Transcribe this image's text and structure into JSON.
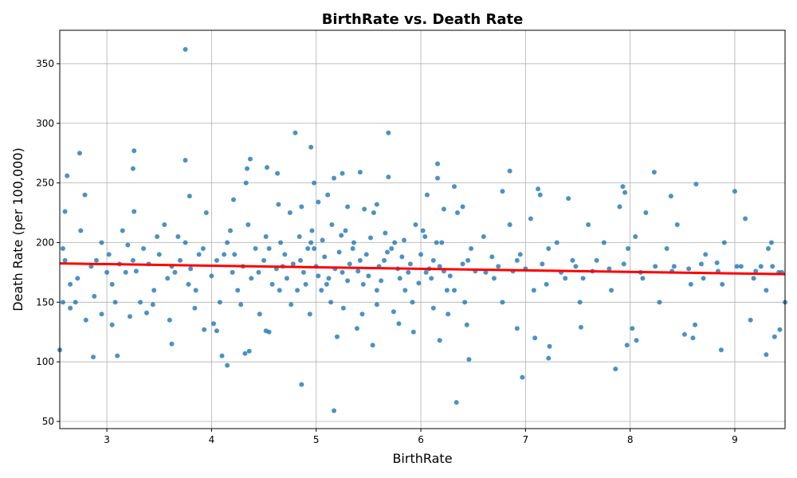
{
  "chart_data": {
    "type": "scatter",
    "title": "BirthRate vs. Death Rate",
    "xlabel": "BirthRate",
    "ylabel": "Death Rate (per 100,000)",
    "xlim": [
      2.55,
      9.48
    ],
    "ylim": [
      44,
      378
    ],
    "xticks": [
      3,
      4,
      5,
      6,
      7,
      8,
      9
    ],
    "yticks": [
      50,
      100,
      150,
      200,
      250,
      300,
      350
    ],
    "grid": true,
    "point_color": "#1f77b4",
    "trend_color": "#ff0000",
    "trendline": {
      "x": [
        2.55,
        9.48
      ],
      "y": [
        182.5,
        173.5
      ]
    },
    "series": [
      {
        "points": [
          [
            3.75,
            362
          ],
          [
            4.8,
            292
          ],
          [
            5.69,
            292
          ],
          [
            4.95,
            280
          ],
          [
            2.74,
            275
          ],
          [
            3.26,
            277
          ],
          [
            4.37,
            270
          ],
          [
            3.75,
            269
          ],
          [
            3.25,
            262
          ],
          [
            4.34,
            262
          ],
          [
            4.53,
            263
          ],
          [
            4.63,
            258
          ],
          [
            5.69,
            255
          ],
          [
            5.17,
            254
          ],
          [
            5.25,
            258
          ],
          [
            5.42,
            259
          ],
          [
            6.16,
            266
          ],
          [
            6.85,
            260
          ],
          [
            8.23,
            259
          ],
          [
            8.63,
            249
          ],
          [
            2.62,
            256
          ],
          [
            2.53,
            228
          ],
          [
            2.6,
            226
          ],
          [
            2.79,
            240
          ],
          [
            4.33,
            250
          ],
          [
            3.26,
            226
          ],
          [
            4.98,
            250
          ],
          [
            6.16,
            254
          ],
          [
            6.32,
            247
          ],
          [
            7.12,
            245
          ],
          [
            7.93,
            247
          ],
          [
            7.95,
            242
          ],
          [
            9.0,
            243
          ],
          [
            3.79,
            239
          ],
          [
            4.21,
            236
          ],
          [
            5.11,
            240
          ],
          [
            6.06,
            240
          ],
          [
            6.78,
            243
          ],
          [
            7.14,
            240
          ],
          [
            7.41,
            237
          ],
          [
            8.39,
            239
          ],
          [
            2.87,
            104
          ],
          [
            3.1,
            105
          ],
          [
            2.55,
            110
          ],
          [
            4.15,
            97
          ],
          [
            4.1,
            105
          ],
          [
            4.36,
            109
          ],
          [
            4.32,
            107
          ],
          [
            4.86,
            81
          ],
          [
            5.17,
            59
          ],
          [
            6.34,
            66
          ],
          [
            6.97,
            87
          ],
          [
            7.86,
            94
          ],
          [
            6.46,
            102
          ],
          [
            7.22,
            103
          ],
          [
            8.87,
            110
          ],
          [
            9.3,
            106
          ],
          [
            5.54,
            114
          ],
          [
            3.62,
            115
          ],
          [
            4.55,
            125
          ],
          [
            5.2,
            121
          ],
          [
            5.93,
            125
          ],
          [
            6.18,
            118
          ],
          [
            7.09,
            120
          ],
          [
            7.97,
            114
          ],
          [
            8.06,
            118
          ],
          [
            8.6,
            120
          ],
          [
            9.38,
            121
          ],
          [
            9.43,
            127
          ],
          [
            8.52,
            123
          ],
          [
            7.23,
            113
          ],
          [
            3.05,
            131
          ],
          [
            2.95,
            140
          ],
          [
            2.58,
            150
          ],
          [
            2.7,
            150
          ],
          [
            3.38,
            141
          ],
          [
            3.93,
            127
          ],
          [
            4.05,
            126
          ],
          [
            4.52,
            126
          ],
          [
            5.39,
            128
          ],
          [
            5.79,
            132
          ],
          [
            6.44,
            131
          ],
          [
            6.92,
            128
          ],
          [
            7.53,
            129
          ],
          [
            8.02,
            128
          ],
          [
            8.62,
            131
          ],
          [
            9.15,
            135
          ],
          [
            9.3,
            160
          ],
          [
            9.48,
            150
          ],
          [
            9.45,
            175
          ],
          [
            9.35,
            200
          ],
          [
            9.1,
            220
          ],
          [
            9.25,
            180
          ],
          [
            8.9,
            200
          ],
          [
            8.83,
            183
          ],
          [
            8.7,
            170
          ],
          [
            8.45,
            215
          ],
          [
            8.35,
            195
          ],
          [
            8.15,
            225
          ],
          [
            8.05,
            205
          ],
          [
            7.9,
            230
          ],
          [
            7.75,
            200
          ],
          [
            7.6,
            215
          ],
          [
            7.55,
            170
          ],
          [
            7.45,
            185
          ],
          [
            7.3,
            200
          ],
          [
            7.2,
            165
          ],
          [
            7.05,
            220
          ],
          [
            6.95,
            190
          ],
          [
            6.85,
            215
          ],
          [
            6.7,
            170
          ],
          [
            6.6,
            205
          ],
          [
            6.45,
            185
          ],
          [
            6.35,
            225
          ],
          [
            6.25,
            160
          ],
          [
            6.15,
            200
          ],
          [
            6.05,
            175
          ],
          [
            5.95,
            215
          ],
          [
            5.85,
            160
          ],
          [
            5.75,
            200
          ],
          [
            5.65,
            185
          ],
          [
            5.55,
            225
          ],
          [
            5.45,
            165
          ],
          [
            5.35,
            195
          ],
          [
            5.25,
            175
          ],
          [
            5.15,
            215
          ],
          [
            5.05,
            160
          ],
          [
            4.95,
            200
          ],
          [
            4.85,
            185
          ],
          [
            4.75,
            225
          ],
          [
            4.65,
            160
          ],
          [
            4.55,
            195
          ],
          [
            4.45,
            175
          ],
          [
            4.35,
            215
          ],
          [
            4.25,
            160
          ],
          [
            4.15,
            200
          ],
          [
            4.05,
            185
          ],
          [
            3.95,
            225
          ],
          [
            3.85,
            160
          ],
          [
            3.75,
            200
          ],
          [
            3.65,
            175
          ],
          [
            3.55,
            215
          ],
          [
            3.45,
            160
          ],
          [
            3.35,
            195
          ],
          [
            3.25,
            185
          ],
          [
            3.15,
            210
          ],
          [
            3.05,
            165
          ],
          [
            2.95,
            200
          ],
          [
            2.85,
            180
          ],
          [
            2.75,
            210
          ],
          [
            2.65,
            165
          ],
          [
            2.58,
            195
          ],
          [
            2.6,
            185
          ],
          [
            2.72,
            170
          ],
          [
            2.88,
            155
          ],
          [
            3.02,
            190
          ],
          [
            3.18,
            175
          ],
          [
            3.32,
            150
          ],
          [
            3.48,
            205
          ],
          [
            3.62,
            180
          ],
          [
            3.78,
            165
          ],
          [
            3.92,
            195
          ],
          [
            4.08,
            150
          ],
          [
            4.22,
            190
          ],
          [
            4.38,
            170
          ],
          [
            4.52,
            205
          ],
          [
            4.68,
            180
          ],
          [
            4.82,
            160
          ],
          [
            4.98,
            195
          ],
          [
            5.12,
            170
          ],
          [
            5.28,
            210
          ],
          [
            5.42,
            185
          ],
          [
            5.58,
            160
          ],
          [
            5.72,
            195
          ],
          [
            5.88,
            175
          ],
          [
            6.02,
            210
          ],
          [
            6.18,
            180
          ],
          [
            6.32,
            160
          ],
          [
            6.48,
            195
          ],
          [
            6.62,
            175
          ],
          [
            6.78,
            150
          ],
          [
            6.92,
            185
          ],
          [
            7.08,
            160
          ],
          [
            7.22,
            195
          ],
          [
            7.38,
            170
          ],
          [
            7.52,
            150
          ],
          [
            7.68,
            185
          ],
          [
            7.82,
            160
          ],
          [
            7.98,
            195
          ],
          [
            8.12,
            170
          ],
          [
            8.28,
            150
          ],
          [
            8.42,
            180
          ],
          [
            8.58,
            165
          ],
          [
            8.72,
            190
          ],
          [
            8.88,
            165
          ],
          [
            9.02,
            180
          ],
          [
            9.18,
            170
          ],
          [
            9.32,
            195
          ],
          [
            9.42,
            175
          ],
          [
            4.62,
            178
          ],
          [
            4.7,
            190
          ],
          [
            4.78,
            182
          ],
          [
            4.88,
            175
          ],
          [
            4.92,
            195
          ],
          [
            5.0,
            180
          ],
          [
            5.08,
            188
          ],
          [
            5.18,
            178
          ],
          [
            5.22,
            192
          ],
          [
            5.32,
            182
          ],
          [
            5.4,
            176
          ],
          [
            5.48,
            190
          ],
          [
            5.6,
            180
          ],
          [
            5.68,
            192
          ],
          [
            5.78,
            178
          ],
          [
            5.82,
            188
          ],
          [
            5.9,
            182
          ],
          [
            6.0,
            190
          ],
          [
            6.08,
            178
          ],
          [
            6.12,
            185
          ],
          [
            6.22,
            176
          ],
          [
            4.58,
            165
          ],
          [
            4.72,
            170
          ],
          [
            4.9,
            165
          ],
          [
            5.02,
            172
          ],
          [
            5.1,
            165
          ],
          [
            5.3,
            168
          ],
          [
            5.5,
            172
          ],
          [
            5.62,
            168
          ],
          [
            5.8,
            170
          ],
          [
            5.98,
            166
          ],
          [
            6.1,
            170
          ],
          [
            6.28,
            172
          ],
          [
            4.66,
            200
          ],
          [
            4.84,
            205
          ],
          [
            4.96,
            210
          ],
          [
            5.06,
            202
          ],
          [
            5.24,
            206
          ],
          [
            5.36,
            200
          ],
          [
            5.52,
            204
          ],
          [
            5.66,
            208
          ],
          [
            5.84,
            202
          ],
          [
            6.04,
            205
          ],
          [
            6.2,
            200
          ],
          [
            4.5,
            185
          ],
          [
            4.42,
            195
          ],
          [
            4.3,
            180
          ],
          [
            4.2,
            175
          ],
          [
            4.12,
            190
          ],
          [
            6.4,
            182
          ],
          [
            6.52,
            176
          ],
          [
            6.68,
            188
          ],
          [
            6.74,
            180
          ],
          [
            6.88,
            176
          ],
          [
            3.8,
            178
          ],
          [
            3.7,
            185
          ],
          [
            3.58,
            170
          ],
          [
            3.4,
            182
          ],
          [
            3.28,
            176
          ],
          [
            3.12,
            182
          ],
          [
            7.0,
            178
          ],
          [
            7.16,
            182
          ],
          [
            7.34,
            175
          ],
          [
            7.48,
            180
          ],
          [
            7.64,
            176
          ],
          [
            7.8,
            178
          ],
          [
            7.94,
            182
          ],
          [
            8.1,
            175
          ],
          [
            8.24,
            180
          ],
          [
            8.4,
            176
          ],
          [
            8.56,
            178
          ],
          [
            8.68,
            182
          ],
          [
            8.84,
            176
          ],
          [
            9.06,
            180
          ],
          [
            9.2,
            176
          ],
          [
            9.36,
            180
          ],
          [
            5.14,
            150
          ],
          [
            5.26,
            145
          ],
          [
            5.44,
            140
          ],
          [
            5.58,
            148
          ],
          [
            5.74,
            142
          ],
          [
            5.92,
            150
          ],
          [
            4.76,
            148
          ],
          [
            4.94,
            140
          ],
          [
            6.12,
            145
          ],
          [
            6.26,
            140
          ],
          [
            6.42,
            150
          ],
          [
            4.46,
            140
          ],
          [
            4.28,
            148
          ],
          [
            5.3,
            230
          ],
          [
            5.46,
            228
          ],
          [
            5.58,
            232
          ],
          [
            4.86,
            230
          ],
          [
            5.02,
            234
          ],
          [
            6.22,
            228
          ],
          [
            6.4,
            230
          ],
          [
            4.64,
            232
          ],
          [
            2.9,
            185
          ],
          [
            3.0,
            175
          ],
          [
            3.2,
            198
          ],
          [
            3.5,
            190
          ],
          [
            3.68,
            205
          ],
          [
            3.88,
            190
          ],
          [
            4.0,
            172
          ],
          [
            4.18,
            210
          ],
          [
            2.65,
            145
          ],
          [
            2.8,
            135
          ],
          [
            3.08,
            150
          ],
          [
            3.22,
            138
          ],
          [
            3.44,
            148
          ],
          [
            3.6,
            135
          ],
          [
            3.84,
            145
          ],
          [
            4.02,
            132
          ]
        ]
      }
    ]
  }
}
